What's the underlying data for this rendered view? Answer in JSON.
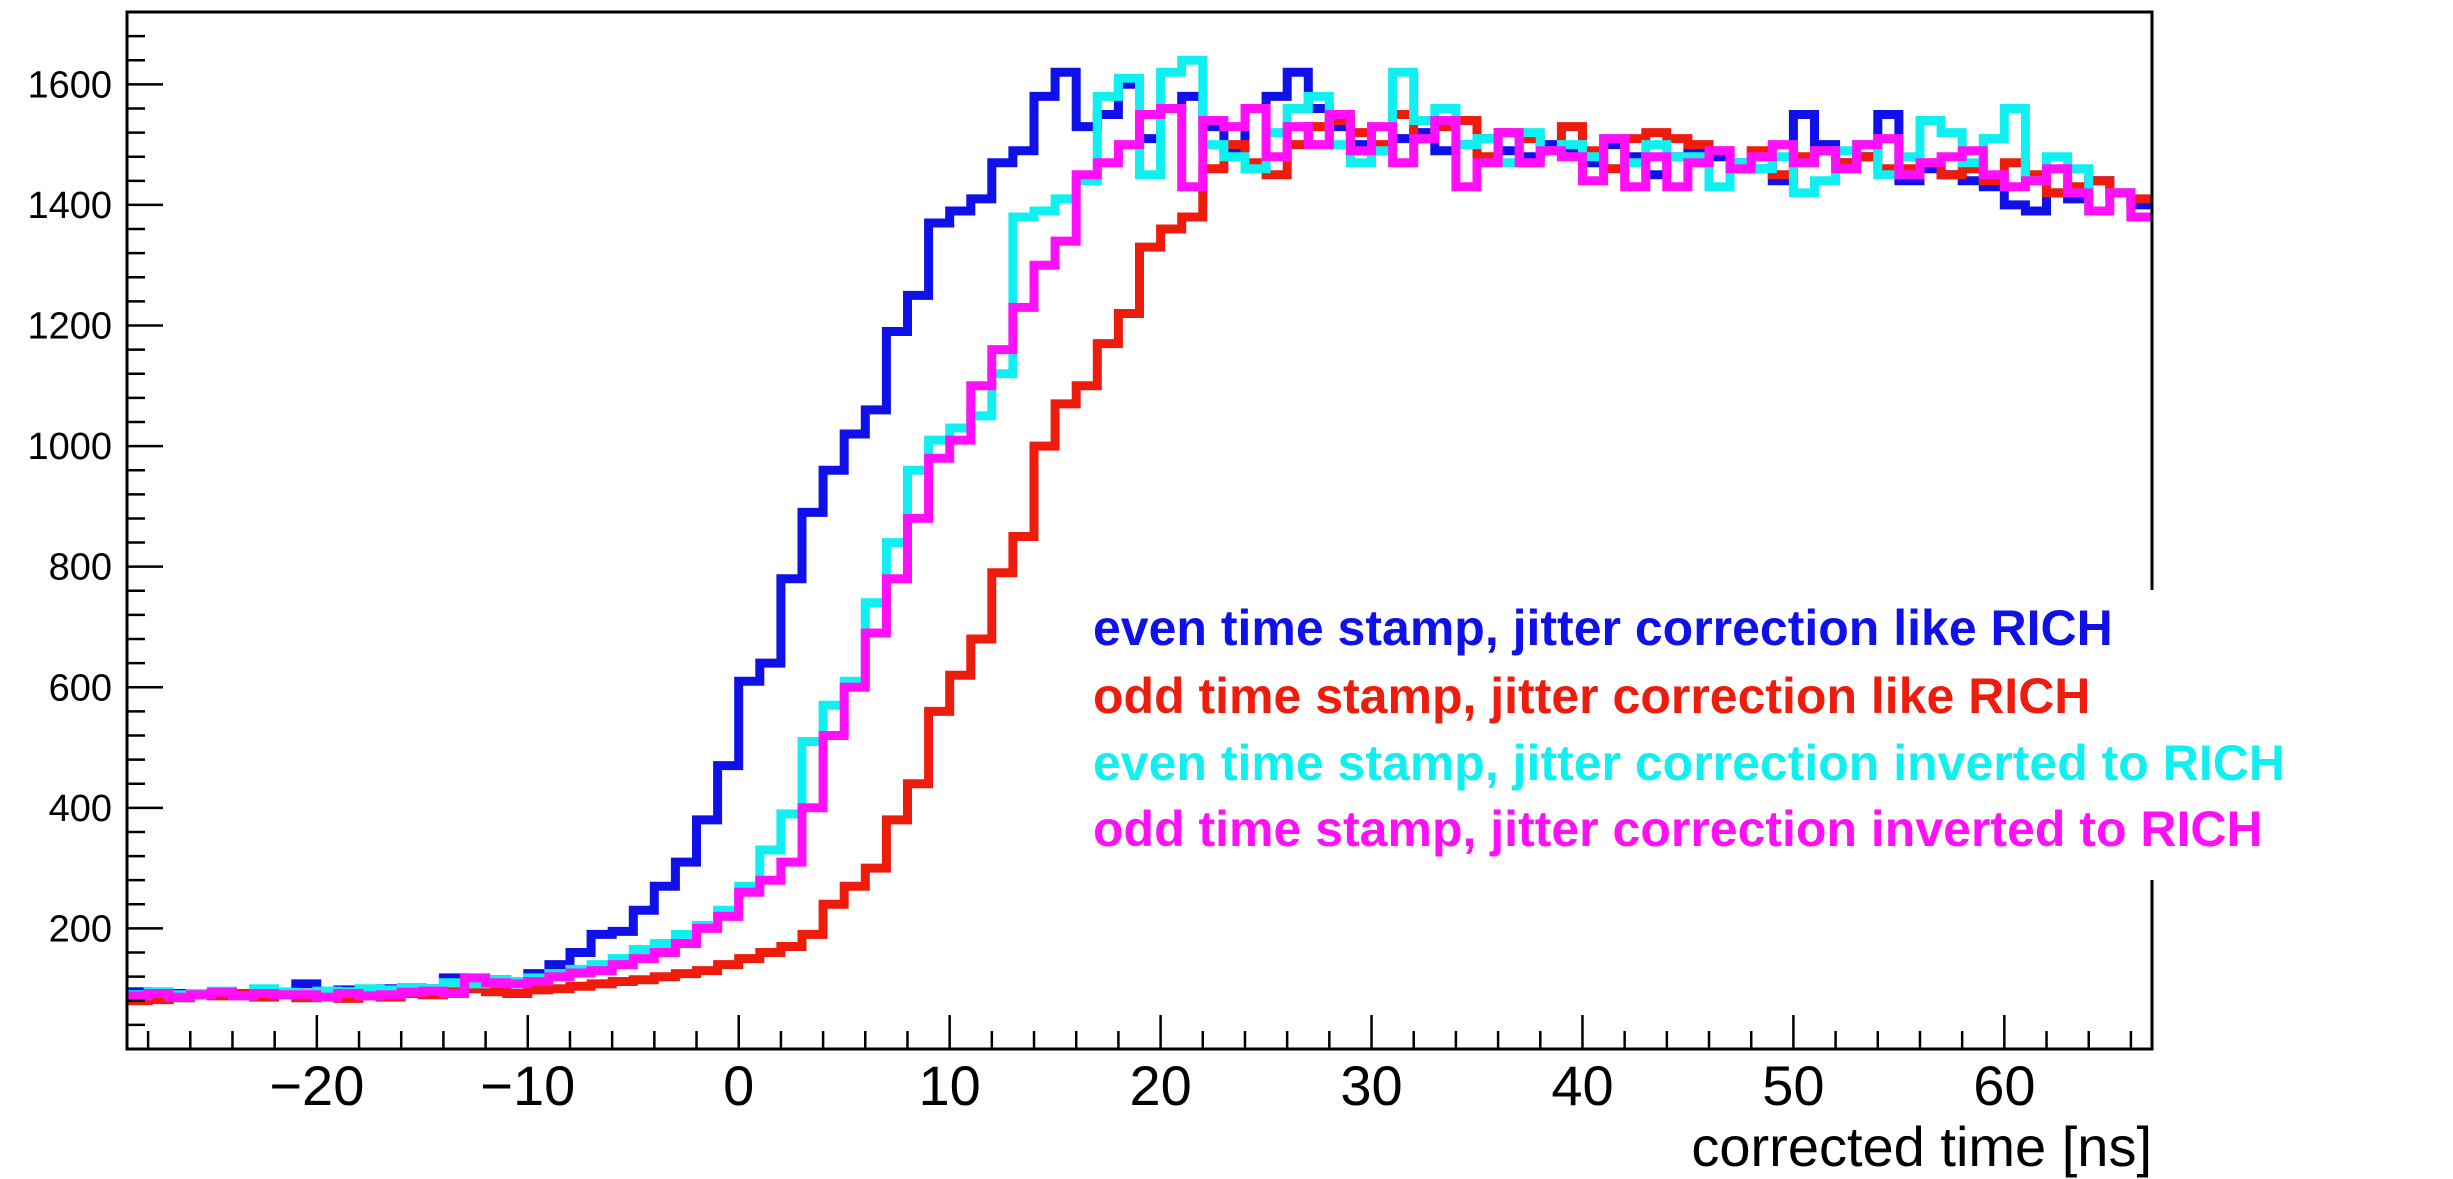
{
  "chart_data": {
    "type": "line",
    "title": "",
    "xlabel": "corrected time [ns]",
    "ylabel": "",
    "xlim": [
      -29,
      67
    ],
    "ylim": [
      0,
      1720
    ],
    "grid": false,
    "legend_position": "center-right",
    "x_ticks": [
      "−20",
      "−10",
      "0",
      "10",
      "20",
      "30",
      "40",
      "50",
      "60"
    ],
    "x_tick_values": [
      -20,
      -10,
      0,
      10,
      20,
      30,
      40,
      50,
      60
    ],
    "y_ticks": [
      "200",
      "400",
      "600",
      "800",
      "1000",
      "1200",
      "1400",
      "1600"
    ],
    "y_tick_values": [
      200,
      400,
      600,
      800,
      1000,
      1200,
      1400,
      1600
    ],
    "bin_width": 1,
    "x": [
      -29,
      -28,
      -27,
      -26,
      -25,
      -24,
      -23,
      -22,
      -21,
      -20,
      -19,
      -18,
      -17,
      -16,
      -15,
      -14,
      -13,
      -12,
      -11,
      -10,
      -9,
      -8,
      -7,
      -6,
      -5,
      -4,
      -3,
      -2,
      -1,
      0,
      1,
      2,
      3,
      4,
      5,
      6,
      7,
      8,
      9,
      10,
      11,
      12,
      13,
      14,
      15,
      16,
      17,
      18,
      19,
      20,
      21,
      22,
      23,
      24,
      25,
      26,
      27,
      28,
      29,
      30,
      31,
      32,
      33,
      34,
      35,
      36,
      37,
      38,
      39,
      40,
      41,
      42,
      43,
      44,
      45,
      46,
      47,
      48,
      49,
      50,
      51,
      52,
      53,
      54,
      55,
      56,
      57,
      58,
      59,
      60,
      61,
      62,
      63,
      64,
      65,
      66
    ],
    "series": [
      {
        "name": "even time stamp, jitter correction like RICH",
        "color": "#1010e8",
        "values": [
          95,
          88,
          92,
          90,
          95,
          92,
          90,
          94,
          108,
          92,
          98,
          94,
          100,
          95,
          100,
          118,
          112,
          115,
          108,
          125,
          140,
          160,
          190,
          195,
          230,
          270,
          310,
          380,
          470,
          610,
          640,
          780,
          890,
          960,
          1020,
          1060,
          1190,
          1250,
          1370,
          1390,
          1410,
          1470,
          1490,
          1580,
          1620,
          1530,
          1550,
          1600,
          1510,
          1560,
          1580,
          1530,
          1490,
          1560,
          1580,
          1620,
          1560,
          1530,
          1500,
          1490,
          1510,
          1520,
          1490,
          1500,
          1510,
          1490,
          1480,
          1500,
          1490,
          1470,
          1500,
          1480,
          1450,
          1480,
          1490,
          1480,
          1470,
          1460,
          1440,
          1550,
          1500,
          1470,
          1480,
          1550,
          1440,
          1460,
          1450,
          1440,
          1430,
          1400,
          1390,
          1420,
          1410,
          1440,
          1420,
          1400
        ]
      },
      {
        "name": "odd time stamp, jitter correction like RICH",
        "color": "#ee1c0c",
        "values": [
          80,
          82,
          85,
          90,
          88,
          92,
          86,
          90,
          85,
          90,
          84,
          88,
          86,
          92,
          90,
          95,
          100,
          95,
          92,
          98,
          100,
          104,
          108,
          112,
          115,
          120,
          125,
          130,
          140,
          150,
          160,
          170,
          190,
          240,
          270,
          300,
          380,
          440,
          560,
          620,
          680,
          790,
          850,
          1000,
          1070,
          1100,
          1170,
          1220,
          1330,
          1360,
          1380,
          1460,
          1500,
          1470,
          1450,
          1500,
          1530,
          1540,
          1520,
          1500,
          1550,
          1510,
          1530,
          1540,
          1480,
          1520,
          1510,
          1490,
          1530,
          1490,
          1460,
          1510,
          1520,
          1510,
          1500,
          1490,
          1460,
          1490,
          1450,
          1480,
          1490,
          1470,
          1480,
          1460,
          1460,
          1470,
          1450,
          1460,
          1440,
          1470,
          1450,
          1420,
          1430,
          1440,
          1420,
          1410
        ]
      },
      {
        "name": "even time stamp, jitter correction inverted to RICH",
        "color": "#10f0f0",
        "values": [
          90,
          95,
          90,
          92,
          96,
          88,
          100,
          94,
          92,
          96,
          95,
          100,
          98,
          102,
          100,
          110,
          108,
          115,
          112,
          118,
          125,
          132,
          140,
          150,
          165,
          175,
          190,
          205,
          230,
          270,
          330,
          390,
          510,
          570,
          610,
          740,
          840,
          960,
          1010,
          1030,
          1050,
          1120,
          1380,
          1390,
          1410,
          1440,
          1580,
          1610,
          1450,
          1620,
          1640,
          1500,
          1480,
          1460,
          1520,
          1560,
          1580,
          1500,
          1470,
          1490,
          1620,
          1540,
          1560,
          1500,
          1510,
          1470,
          1520,
          1490,
          1500,
          1480,
          1510,
          1470,
          1500,
          1480,
          1480,
          1430,
          1470,
          1460,
          1480,
          1420,
          1440,
          1490,
          1500,
          1450,
          1480,
          1540,
          1520,
          1470,
          1510,
          1560,
          1440,
          1480,
          1460,
          1390,
          1420,
          1380
        ]
      },
      {
        "name": "odd time stamp, jitter correction inverted to RICH",
        "color": "#ff10f8",
        "values": [
          88,
          92,
          86,
          90,
          94,
          88,
          92,
          90,
          90,
          86,
          92,
          88,
          90,
          94,
          96,
          92,
          118,
          110,
          108,
          112,
          120,
          126,
          130,
          140,
          150,
          160,
          175,
          200,
          220,
          260,
          280,
          310,
          400,
          520,
          600,
          690,
          780,
          880,
          980,
          1010,
          1100,
          1160,
          1230,
          1300,
          1340,
          1450,
          1470,
          1500,
          1550,
          1560,
          1430,
          1540,
          1530,
          1560,
          1480,
          1530,
          1500,
          1550,
          1490,
          1530,
          1470,
          1510,
          1540,
          1430,
          1470,
          1520,
          1470,
          1490,
          1480,
          1440,
          1510,
          1430,
          1480,
          1430,
          1470,
          1490,
          1460,
          1480,
          1500,
          1470,
          1490,
          1460,
          1500,
          1510,
          1450,
          1470,
          1480,
          1490,
          1450,
          1430,
          1440,
          1460,
          1420,
          1390,
          1420,
          1380
        ]
      }
    ]
  }
}
